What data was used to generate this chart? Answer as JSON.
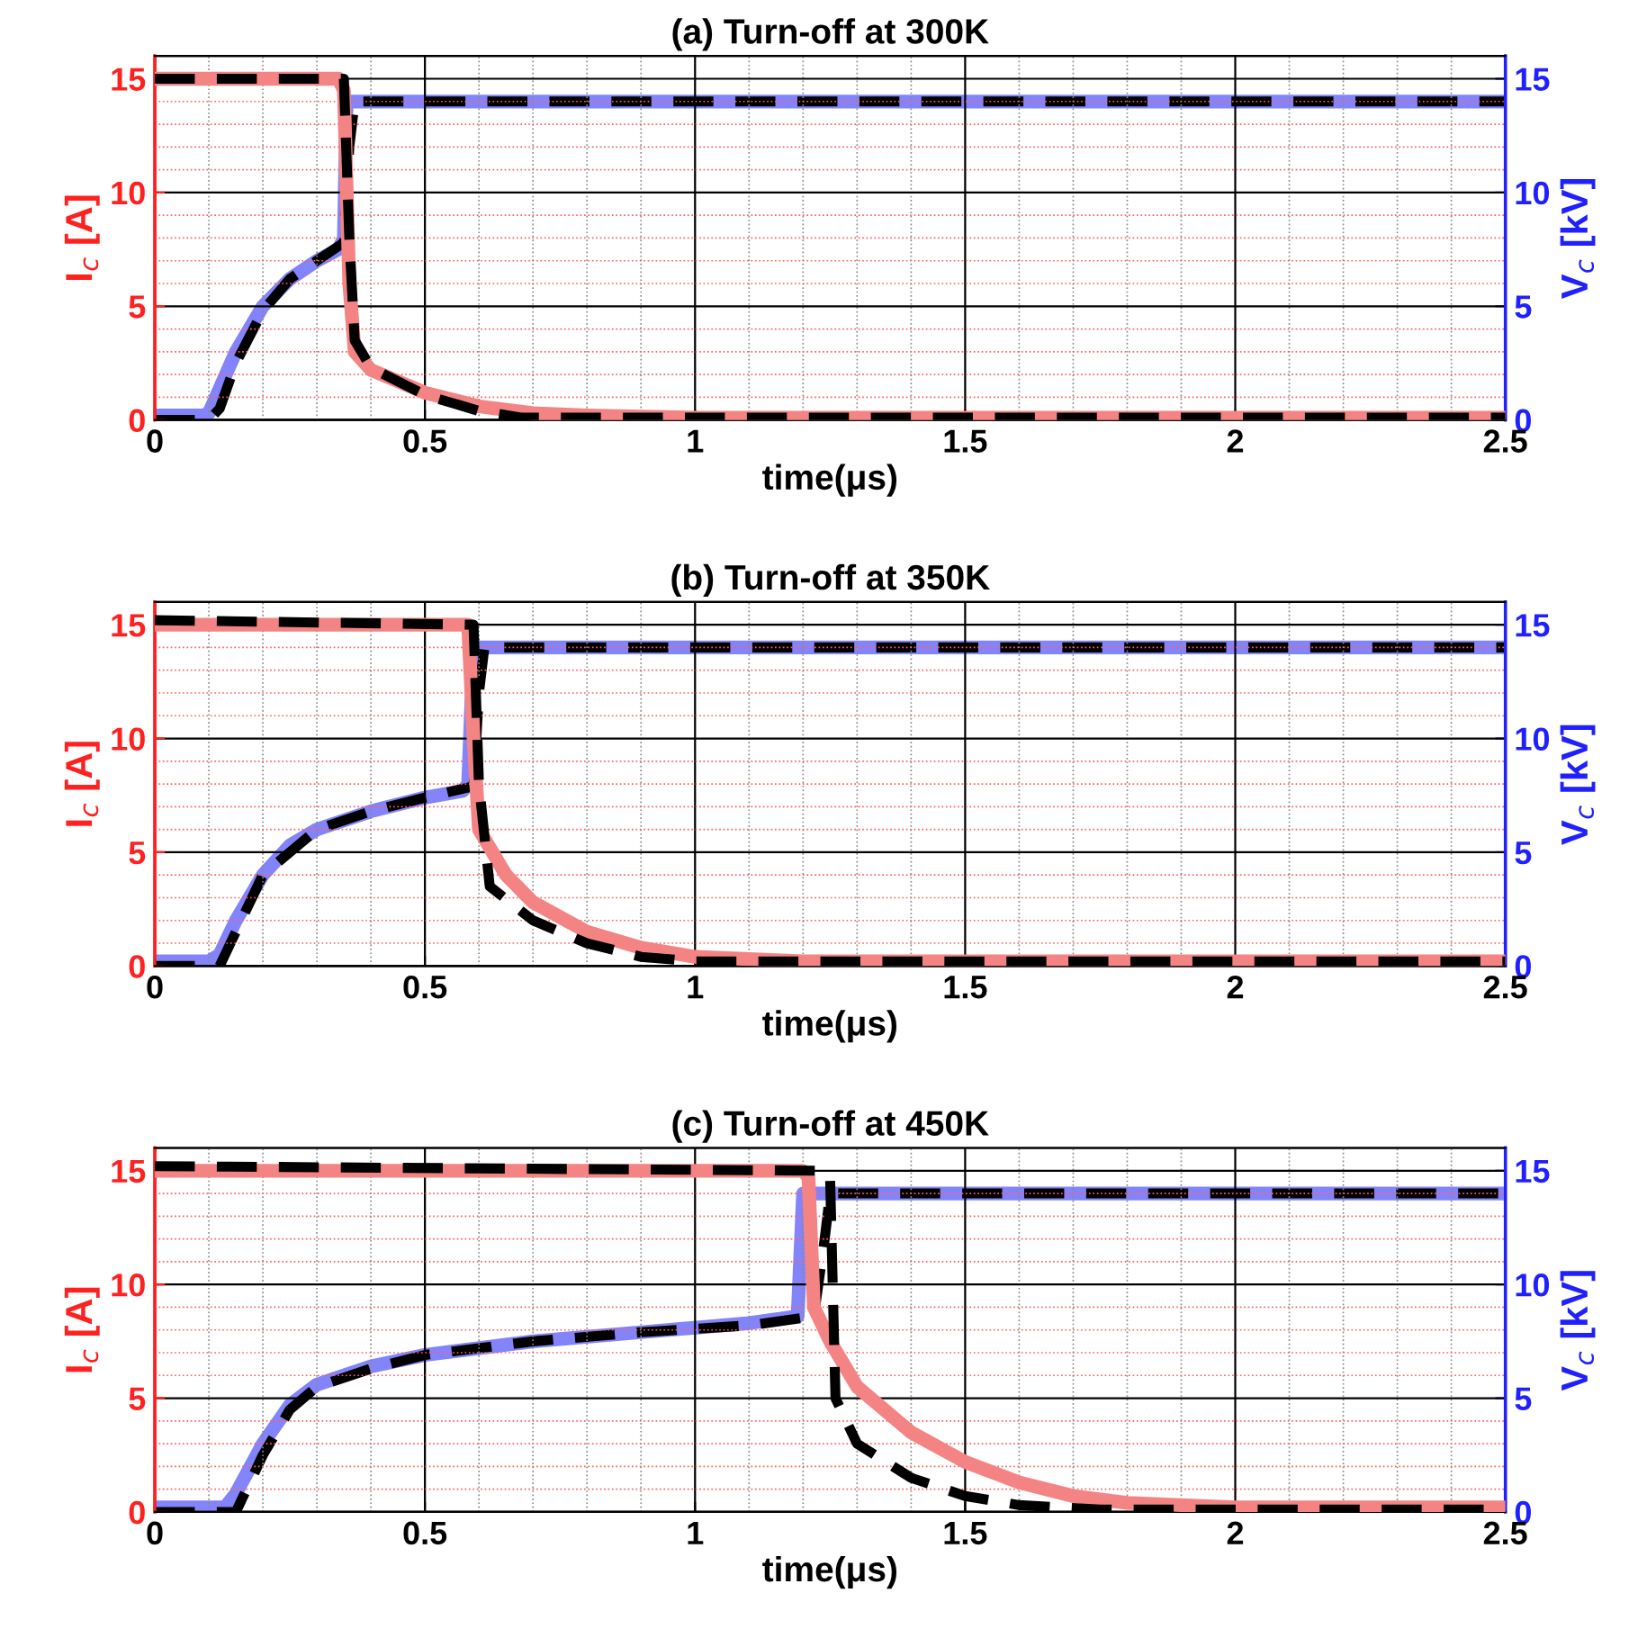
{
  "chart_data": [
    {
      "type": "line",
      "title": "(a) Turn-off at 300K",
      "xlabel": "time(μs)",
      "ylabel": "I$_{c}$ [A]",
      "y2label": "V$_{c}$ [kV]",
      "xlim": [
        0,
        2.5
      ],
      "xticks": [
        0,
        0.5,
        1,
        1.5,
        2,
        2.5
      ],
      "ylim": [
        0,
        16
      ],
      "yticks": [
        0,
        {
          "value": 1,
          "label": null
        },
        {
          "value": 2,
          "label": null
        },
        {
          "value": 3,
          "label": null
        },
        {
          "value": 4,
          "label": null
        },
        5,
        {
          "value": 6,
          "label": null
        },
        {
          "value": 7,
          "label": null
        },
        {
          "value": 8,
          "label": null
        },
        {
          "value": 9,
          "label": null
        },
        10,
        {
          "value": 11,
          "label": null
        },
        {
          "value": 12,
          "label": null
        },
        {
          "value": 13,
          "label": null
        },
        {
          "value": 14,
          "label": null
        },
        15,
        {
          "value": 16,
          "label": null
        }
      ],
      "y2lim": [
        0,
        16
      ],
      "y2ticks": [
        0,
        5,
        10,
        15
      ],
      "grid": true,
      "legend": false,
      "series": [
        {
          "color": "#f48484",
          "line_style": "solid",
          "x": [
            0,
            0.34,
            0.35,
            0.36,
            0.37,
            0.4,
            0.5,
            0.6,
            0.7,
            0.8,
            1.0,
            2.5
          ],
          "values": [
            15,
            15,
            14.5,
            6,
            3,
            2.2,
            1.2,
            0.6,
            0.3,
            0.2,
            0.1,
            0.1
          ]
        },
        {
          "color": "#8484fa",
          "line_style": "solid",
          "axis": "y2",
          "x": [
            0,
            0.09,
            0.1,
            0.15,
            0.2,
            0.25,
            0.3,
            0.34,
            0.35,
            0.355,
            2.5
          ],
          "values": [
            0.2,
            0.2,
            0.3,
            3,
            5,
            6.2,
            7,
            7.5,
            8,
            14,
            14
          ]
        },
        {
          "color": "#000000",
          "line_style": "dashed",
          "x": [
            0,
            0.35,
            0.36,
            0.37,
            0.4,
            0.5,
            0.6,
            0.68,
            2.5
          ],
          "values": [
            15,
            15,
            8,
            3.5,
            2.3,
            1.1,
            0.4,
            0.1,
            0.1
          ]
        },
        {
          "color": "#000000",
          "line_style": "dashed",
          "axis": "y2",
          "x": [
            0,
            0.1,
            0.12,
            0.15,
            0.2,
            0.25,
            0.3,
            0.35,
            0.36,
            0.37,
            2.5
          ],
          "values": [
            0,
            0,
            0.5,
            2.5,
            4.8,
            6.2,
            7,
            7.8,
            12,
            14,
            14
          ]
        }
      ]
    },
    {
      "type": "line",
      "title": "(b) Turn-off at 350K",
      "xlabel": "time(μs)",
      "ylabel": "I$_{c}$ [A]",
      "y2label": "V$_{c}$ [kV]",
      "xlim": [
        0,
        2.5
      ],
      "xticks": [
        0,
        0.5,
        1,
        1.5,
        2,
        2.5
      ],
      "ylim": [
        0,
        16
      ],
      "yticks": [
        0,
        {
          "value": 1,
          "label": null
        },
        {
          "value": 2,
          "label": null
        },
        {
          "value": 3,
          "label": null
        },
        {
          "value": 4,
          "label": null
        },
        5,
        {
          "value": 6,
          "label": null
        },
        {
          "value": 7,
          "label": null
        },
        {
          "value": 8,
          "label": null
        },
        {
          "value": 9,
          "label": null
        },
        10,
        {
          "value": 11,
          "label": null
        },
        {
          "value": 12,
          "label": null
        },
        {
          "value": 13,
          "label": null
        },
        {
          "value": 14,
          "label": null
        },
        15,
        {
          "value": 16,
          "label": null
        }
      ],
      "y2lim": [
        0,
        16
      ],
      "y2ticks": [
        0,
        5,
        10,
        15
      ],
      "grid": true,
      "legend": false,
      "series": [
        {
          "color": "#f48484",
          "line_style": "solid",
          "x": [
            0,
            0.58,
            0.59,
            0.6,
            0.65,
            0.7,
            0.8,
            0.9,
            1.0,
            1.2,
            2.5
          ],
          "values": [
            15,
            15,
            10,
            6,
            4,
            2.8,
            1.5,
            0.8,
            0.4,
            0.2,
            0.2
          ]
        },
        {
          "color": "#8484fa",
          "line_style": "solid",
          "axis": "y2",
          "x": [
            0,
            0.1,
            0.12,
            0.15,
            0.2,
            0.25,
            0.3,
            0.4,
            0.5,
            0.57,
            0.58,
            0.59,
            2.5
          ],
          "values": [
            0.2,
            0.2,
            0.5,
            2,
            4,
            5.3,
            6,
            6.8,
            7.4,
            7.7,
            8,
            14,
            14
          ]
        },
        {
          "color": "#000000",
          "line_style": "dashed",
          "x": [
            0,
            0.59,
            0.6,
            0.62,
            0.7,
            0.8,
            0.9,
            1.0,
            2.5
          ],
          "values": [
            15.2,
            15,
            8,
            3.5,
            2,
            1,
            0.4,
            0.2,
            0.2
          ]
        },
        {
          "color": "#000000",
          "line_style": "dashed",
          "axis": "y2",
          "x": [
            0,
            0.12,
            0.15,
            0.2,
            0.3,
            0.4,
            0.5,
            0.59,
            0.6,
            0.61,
            2.5
          ],
          "values": [
            0,
            0,
            1.5,
            4,
            6,
            6.8,
            7.4,
            7.9,
            12,
            14,
            14
          ]
        }
      ]
    },
    {
      "type": "line",
      "title": "(c) Turn-off at 450K",
      "xlabel": "time(μs)",
      "ylabel": "I$_{c}$ [A]",
      "y2label": "V$_{c}$ [kV]",
      "xlim": [
        0,
        2.5
      ],
      "xticks": [
        0,
        0.5,
        1,
        1.5,
        2,
        2.5
      ],
      "ylim": [
        0,
        16
      ],
      "yticks": [
        0,
        {
          "value": 1,
          "label": null
        },
        {
          "value": 2,
          "label": null
        },
        {
          "value": 3,
          "label": null
        },
        {
          "value": 4,
          "label": null
        },
        5,
        {
          "value": 6,
          "label": null
        },
        {
          "value": 7,
          "label": null
        },
        {
          "value": 8,
          "label": null
        },
        {
          "value": 9,
          "label": null
        },
        10,
        {
          "value": 11,
          "label": null
        },
        {
          "value": 12,
          "label": null
        },
        {
          "value": 13,
          "label": null
        },
        {
          "value": 14,
          "label": null
        },
        15,
        {
          "value": 16,
          "label": null
        }
      ],
      "y2lim": [
        0,
        16
      ],
      "y2ticks": [
        0,
        5,
        10,
        15
      ],
      "grid": true,
      "legend": false,
      "series": [
        {
          "color": "#f48484",
          "line_style": "solid",
          "x": [
            0,
            1.2,
            1.21,
            1.22,
            1.25,
            1.3,
            1.4,
            1.5,
            1.6,
            1.7,
            1.8,
            2.0,
            2.5
          ],
          "values": [
            15,
            15,
            14.7,
            9,
            7.5,
            5.5,
            3.5,
            2.2,
            1.3,
            0.7,
            0.4,
            0.2,
            0.2
          ]
        },
        {
          "color": "#8484fa",
          "line_style": "solid",
          "axis": "y2",
          "x": [
            0,
            0.13,
            0.15,
            0.2,
            0.25,
            0.3,
            0.4,
            0.5,
            0.7,
            0.9,
            1.1,
            1.19,
            1.2,
            2.5
          ],
          "values": [
            0.2,
            0.2,
            0.8,
            3,
            4.7,
            5.6,
            6.4,
            6.9,
            7.5,
            7.9,
            8.3,
            8.6,
            14,
            14
          ]
        },
        {
          "color": "#000000",
          "line_style": "dashed",
          "x": [
            0,
            1.24,
            1.25,
            1.26,
            1.3,
            1.4,
            1.5,
            1.6,
            1.75,
            2.5
          ],
          "values": [
            15.2,
            15,
            14.7,
            5,
            3,
            1.5,
            0.7,
            0.3,
            0.1,
            0.1
          ]
        },
        {
          "color": "#000000",
          "line_style": "dashed",
          "axis": "y2",
          "x": [
            0,
            0.15,
            0.2,
            0.25,
            0.3,
            0.4,
            0.5,
            0.7,
            0.9,
            1.1,
            1.22,
            1.24,
            1.25,
            2.5
          ],
          "values": [
            0,
            0,
            2.5,
            4.5,
            5.5,
            6.3,
            6.9,
            7.5,
            7.9,
            8.2,
            8.6,
            12,
            14,
            14
          ]
        }
      ]
    }
  ]
}
